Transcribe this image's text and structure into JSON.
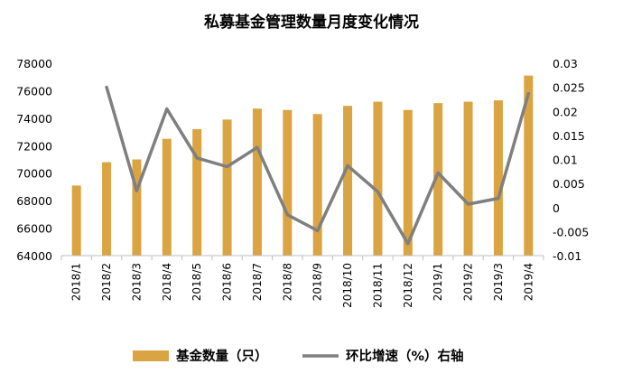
{
  "chart_data": {
    "type": "bar+line",
    "title": "私募基金管理数量月度变化情况",
    "categories": [
      "2018/1",
      "2018/2",
      "2018/3",
      "2018/4",
      "2018/5",
      "2018/6",
      "2018/7",
      "2018/8",
      "2018/9",
      "2018/10",
      "2018/11",
      "2018/12",
      "2019/1",
      "2019/2",
      "2019/3",
      "2019/4"
    ],
    "series": [
      {
        "name": "基金数量（只）",
        "type": "bar",
        "axis": "left",
        "color": "#D9A441",
        "values": [
          69100,
          70800,
          71000,
          72500,
          73200,
          73900,
          74700,
          74600,
          74300,
          74900,
          75200,
          74600,
          75100,
          75200,
          75300,
          77100
        ]
      },
      {
        "name": "环比增速（%）右轴",
        "type": "line",
        "axis": "right",
        "color": "#7F7F7F",
        "values": [
          null,
          0.025,
          0.0035,
          0.0205,
          0.0103,
          0.0085,
          0.0125,
          -0.0015,
          -0.0048,
          0.0087,
          0.0033,
          -0.0075,
          0.0072,
          0.0007,
          0.0019,
          0.0237
        ]
      }
    ],
    "y_left": {
      "min": 64000,
      "max": 78000,
      "ticks": [
        "64000",
        "66000",
        "68000",
        "70000",
        "72000",
        "74000",
        "76000",
        "78000"
      ]
    },
    "y_right": {
      "min": -0.01,
      "max": 0.03,
      "ticks": [
        "-0.01",
        "-0.005",
        "0",
        "0.005",
        "0.01",
        "0.015",
        "0.02",
        "0.025",
        "0.03"
      ]
    },
    "grid": false,
    "legend_position": "bottom"
  }
}
